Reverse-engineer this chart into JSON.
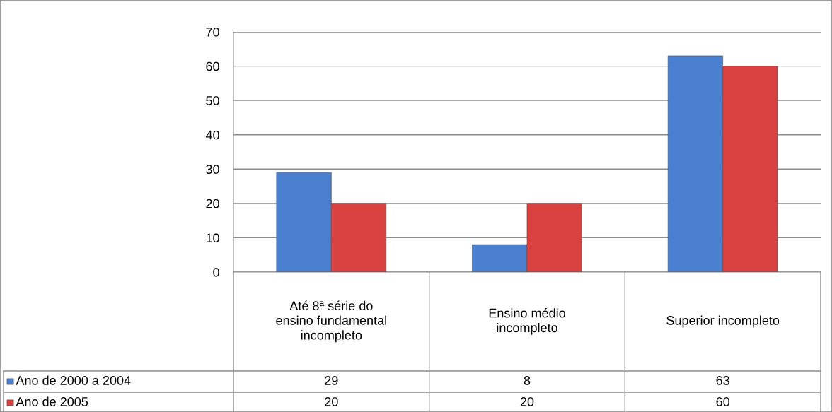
{
  "chart_data": {
    "type": "bar",
    "categories": [
      "Até 8ª série do\nensino fundamental\nincompleto",
      "Ensino médio\nincompleto",
      "Superior incompleto"
    ],
    "series": [
      {
        "name": "Ano de 2000 a 2004",
        "color": "#4a7fd0",
        "values": [
          29,
          8,
          63
        ]
      },
      {
        "name": "Ano de 2005",
        "color": "#d94040",
        "values": [
          20,
          20,
          60
        ]
      }
    ],
    "ylim": [
      0,
      70
    ],
    "yticks": [
      0,
      10,
      20,
      30,
      40,
      50,
      60,
      70
    ],
    "grid": "y",
    "data_labels": true,
    "legend": "bottom"
  }
}
